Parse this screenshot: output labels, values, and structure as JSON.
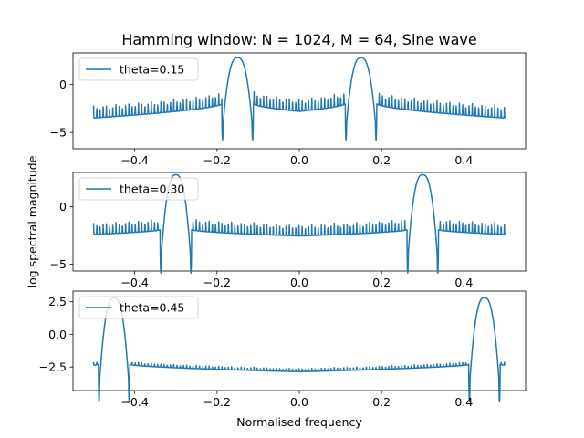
{
  "figure": {
    "title": "Hamming window: N = 1024, M = 64, Sine wave",
    "xlabel": "Normalised frequency",
    "ylabel": "log spectral magnitude",
    "line_color": "#1f77b4"
  },
  "chart_data": [
    {
      "type": "line",
      "series": [
        {
          "name": "theta=0.15"
        }
      ],
      "theta": 0.15,
      "xlim": [
        -0.55,
        0.55
      ],
      "ylim": [
        -6.7,
        3.3
      ],
      "xticks": [
        -0.4,
        -0.2,
        0.0,
        0.2,
        0.4
      ],
      "xtick_labels": [
        "−0.4",
        "−0.2",
        "0.0",
        "0.2",
        "0.4"
      ],
      "yticks": [
        0,
        -5
      ],
      "ytick_labels": [
        "0",
        "−5"
      ],
      "peak_value": 2.8,
      "main_lobe_edge_value": -4.0,
      "sidelobe_near_value": -2.0,
      "sidelobe_far_value": -3.6,
      "null_depth_value": -1.3,
      "legend": "top-left",
      "grid": false
    },
    {
      "type": "line",
      "series": [
        {
          "name": "theta=0.30"
        }
      ],
      "theta": 0.3,
      "xlim": [
        -0.55,
        0.55
      ],
      "ylim": [
        -5.6,
        3.0
      ],
      "xticks": [
        -0.4,
        -0.2,
        0.0,
        0.2,
        0.4
      ],
      "xtick_labels": [
        "−0.4",
        "−0.2",
        "0.0",
        "0.2",
        "0.4"
      ],
      "yticks": [
        0,
        -5
      ],
      "ytick_labels": [
        "0",
        "−5"
      ],
      "peak_value": 2.8,
      "main_lobe_edge_value": -4.0,
      "sidelobe_near_value": -2.0,
      "sidelobe_far_value": -2.9,
      "null_depth_value": -1.0,
      "legend": "top-left",
      "grid": false
    },
    {
      "type": "line",
      "series": [
        {
          "name": "theta=0.45"
        }
      ],
      "theta": 0.45,
      "xlim": [
        -0.55,
        0.55
      ],
      "ylim": [
        -4.3,
        3.3
      ],
      "xticks": [
        -0.4,
        -0.2,
        0.0,
        0.2,
        0.4
      ],
      "xtick_labels": [
        "−0.4",
        "−0.2",
        "0.0",
        "0.2",
        "0.4"
      ],
      "yticks": [
        2.5,
        0.0,
        -2.5
      ],
      "ytick_labels": [
        "2.5",
        "0.0",
        "−2.5"
      ],
      "peak_value": 2.8,
      "main_lobe_edge_value": -3.4,
      "sidelobe_near_value": -2.3,
      "sidelobe_far_value": -3.2,
      "null_depth_value": -0.25,
      "legend": "top-left",
      "grid": false
    }
  ]
}
